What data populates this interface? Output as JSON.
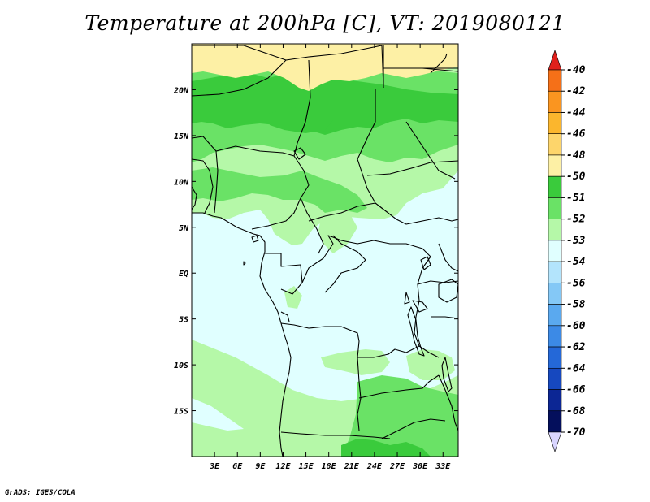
{
  "title": "Temperature at 200hPa [C], VT: 2019080121",
  "credit": "GrADS: IGES/COLA",
  "map": {
    "latitude_labels": [
      "20N",
      "15N",
      "10N",
      "5N",
      "EQ",
      "5S",
      "10S",
      "15S"
    ],
    "latitude_values": [
      20,
      15,
      10,
      5,
      0,
      -5,
      -10,
      -15
    ],
    "longitude_labels": [
      "3E",
      "6E",
      "9E",
      "12E",
      "15E",
      "18E",
      "21E",
      "24E",
      "27E",
      "30E",
      "33E"
    ],
    "longitude_values": [
      3,
      6,
      9,
      12,
      15,
      18,
      21,
      24,
      27,
      30,
      33
    ],
    "lon_range": [
      0,
      35
    ],
    "lat_range": [
      -20,
      25
    ]
  },
  "colorbar": {
    "unit": "C",
    "top_arrow_color": "#e0211c",
    "bottom_arrow_color": "#d9d5ff",
    "bins": [
      {
        "label": "-40",
        "color": "#ee4817"
      },
      {
        "label": "-42",
        "color": "#f57018"
      },
      {
        "label": "-44",
        "color": "#fa9520"
      },
      {
        "label": "-46",
        "color": "#fbb62d"
      },
      {
        "label": "-48",
        "color": "#fdd56b"
      },
      {
        "label": "-50",
        "color": "#fdf0a5"
      },
      {
        "label": "-51",
        "color": "#3acb3c"
      },
      {
        "label": "-52",
        "color": "#6ae266"
      },
      {
        "label": "-53",
        "color": "#b5f8a8"
      },
      {
        "label": "-54",
        "color": "#e0ffff"
      },
      {
        "label": "-56",
        "color": "#b3e4fc"
      },
      {
        "label": "-58",
        "color": "#84c8f6"
      },
      {
        "label": "-60",
        "color": "#5aa9ef"
      },
      {
        "label": "-62",
        "color": "#3c8ae6"
      },
      {
        "label": "-64",
        "color": "#2468d8"
      },
      {
        "label": "-66",
        "color": "#1648bf"
      },
      {
        "label": "-68",
        "color": "#0c2694"
      },
      {
        "label": "-70",
        "color": "#040f5c"
      }
    ]
  },
  "field_colors": {
    "yellow": "#fdf0a5",
    "dark_green": "#3acb3c",
    "medium_green": "#6ae266",
    "light_green": "#b5f8a8",
    "pale_cyan": "#e0ffff"
  }
}
